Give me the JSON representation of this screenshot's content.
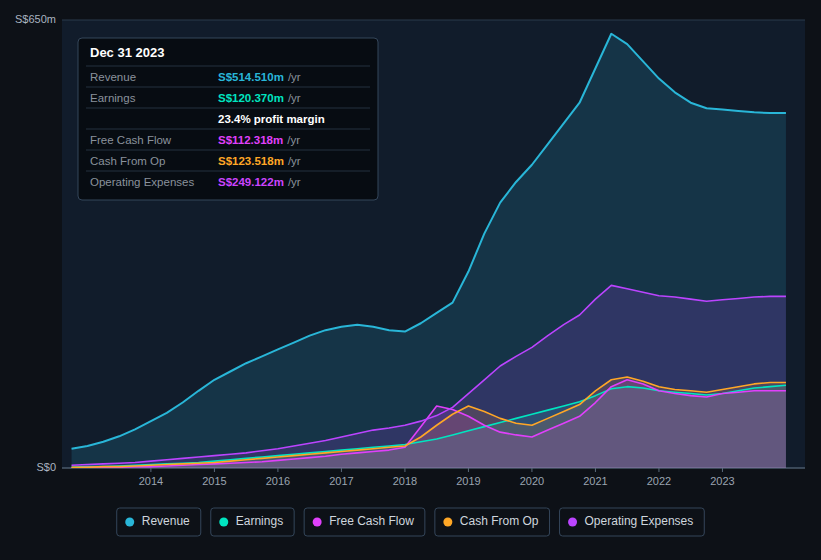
{
  "chart_data": {
    "type": "area",
    "x": [
      2012.75,
      2013.0,
      2013.25,
      2013.5,
      2013.75,
      2014.0,
      2014.25,
      2014.5,
      2014.75,
      2015.0,
      2015.25,
      2015.5,
      2015.75,
      2016.0,
      2016.25,
      2016.5,
      2016.75,
      2017.0,
      2017.25,
      2017.5,
      2017.75,
      2018.0,
      2018.25,
      2018.5,
      2018.75,
      2019.0,
      2019.25,
      2019.5,
      2019.75,
      2020.0,
      2020.25,
      2020.5,
      2020.75,
      2021.0,
      2021.25,
      2021.5,
      2021.75,
      2022.0,
      2022.25,
      2022.5,
      2022.75,
      2023.0,
      2023.25,
      2023.5,
      2023.75,
      2024.0
    ],
    "xlim": [
      2012.6,
      2024.3
    ],
    "xticks": [
      2014,
      2015,
      2016,
      2017,
      2018,
      2019,
      2020,
      2021,
      2022,
      2023
    ],
    "ylim": [
      0,
      650
    ],
    "yticks": [
      {
        "value": 0,
        "label": "S$0"
      },
      {
        "value": 650,
        "label": "S$650m"
      }
    ],
    "grid": true,
    "legend": "bottom",
    "series": [
      {
        "name": "Revenue",
        "color": "#29b6d8",
        "values": [
          28,
          32,
          38,
          46,
          56,
          68,
          80,
          95,
          112,
          128,
          140,
          152,
          162,
          172,
          182,
          192,
          200,
          205,
          208,
          205,
          200,
          198,
          210,
          225,
          240,
          285,
          340,
          385,
          415,
          440,
          470,
          500,
          530,
          580,
          630,
          615,
          590,
          565,
          545,
          530,
          522,
          520,
          518,
          516,
          515,
          515
        ]
      },
      {
        "name": "Earnings",
        "color": "#00e5c0",
        "values": [
          1,
          2,
          2,
          3,
          4,
          5,
          6,
          7,
          8,
          10,
          12,
          14,
          16,
          18,
          20,
          22,
          24,
          26,
          28,
          30,
          32,
          34,
          38,
          42,
          48,
          54,
          60,
          66,
          72,
          78,
          84,
          90,
          96,
          105,
          115,
          118,
          116,
          112,
          110,
          108,
          106,
          108,
          112,
          116,
          118,
          120
        ]
      },
      {
        "name": "Free Cash Flow",
        "color": "#e040fb",
        "values": [
          0,
          1,
          1,
          1,
          2,
          2,
          3,
          4,
          5,
          6,
          7,
          8,
          9,
          11,
          13,
          15,
          17,
          20,
          22,
          24,
          26,
          30,
          60,
          90,
          85,
          75,
          62,
          52,
          48,
          45,
          55,
          65,
          75,
          95,
          118,
          128,
          122,
          112,
          108,
          105,
          103,
          108,
          110,
          112,
          112,
          112
        ]
      },
      {
        "name": "Cash From Op",
        "color": "#ffa726",
        "values": [
          1,
          1,
          2,
          2,
          3,
          4,
          5,
          6,
          7,
          8,
          10,
          12,
          14,
          16,
          18,
          20,
          22,
          24,
          26,
          28,
          30,
          32,
          45,
          62,
          78,
          90,
          82,
          72,
          65,
          62,
          72,
          82,
          92,
          112,
          128,
          132,
          126,
          118,
          114,
          112,
          110,
          114,
          118,
          122,
          124,
          124
        ]
      },
      {
        "name": "Operating Expenses",
        "color": "#bb44ff",
        "values": [
          4,
          5,
          6,
          7,
          8,
          10,
          12,
          14,
          16,
          18,
          20,
          22,
          25,
          28,
          32,
          36,
          40,
          45,
          50,
          55,
          58,
          62,
          68,
          76,
          88,
          108,
          128,
          148,
          162,
          175,
          192,
          208,
          222,
          245,
          265,
          260,
          255,
          250,
          248,
          245,
          242,
          244,
          246,
          248,
          249,
          249
        ]
      }
    ],
    "tooltip": {
      "date": "Dec 31 2023",
      "rows": [
        {
          "label": "Revenue",
          "value": "S$514.510m",
          "suffix": "/yr",
          "color": "#29b6d8"
        },
        {
          "label": "Earnings",
          "value": "S$120.370m",
          "suffix": "/yr",
          "color": "#00e5c0"
        },
        {
          "value": "23.4% profit margin",
          "color": "white"
        },
        {
          "label": "Free Cash Flow",
          "value": "S$112.318m",
          "suffix": "/yr",
          "color": "#e040fb"
        },
        {
          "label": "Cash From Op",
          "value": "S$123.518m",
          "suffix": "/yr",
          "color": "#ffa726"
        },
        {
          "label": "Operating Expenses",
          "value": "S$249.122m",
          "suffix": "/yr",
          "color": "#cc44ff"
        }
      ]
    }
  }
}
